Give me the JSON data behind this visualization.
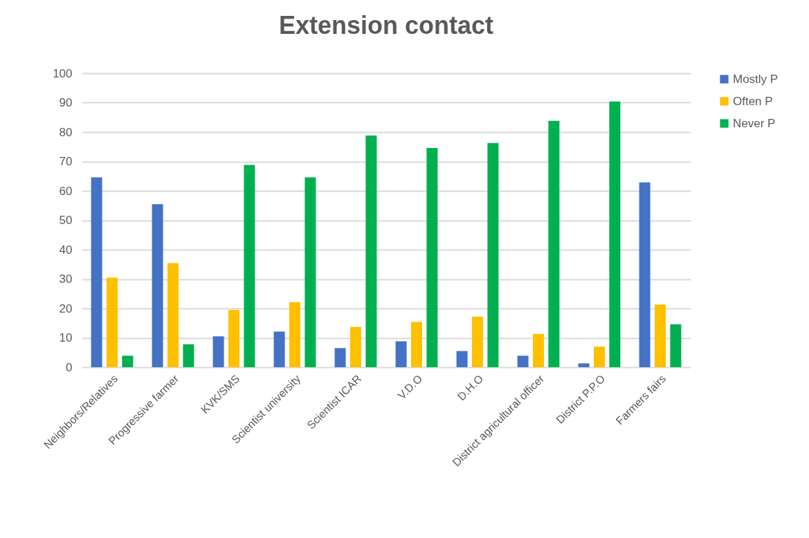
{
  "chart_data": {
    "type": "bar",
    "title": "Extension contact",
    "categories": [
      "Neighbors/Relatives",
      "Progressive farmer",
      "KVK/SMS",
      "Scientist university",
      "Scientist ICAR",
      "V.D.O",
      "D.H.O",
      "District agricultural officer",
      "District P.P.O",
      "Farmers fairs"
    ],
    "series": [
      {
        "name": "Mostly P",
        "color": "#4472c4",
        "values": [
          64.6,
          55.5,
          10.5,
          12.1,
          6.5,
          8.8,
          5.5,
          3.9,
          1.3,
          62.9
        ]
      },
      {
        "name": "Often P",
        "color": "#ffc000",
        "values": [
          30.5,
          35.4,
          19.5,
          22.1,
          13.7,
          15.4,
          17.2,
          11.3,
          7.0,
          21.3
        ]
      },
      {
        "name": "Never P",
        "color": "#00b050",
        "values": [
          3.9,
          7.8,
          68.8,
          64.6,
          78.8,
          74.6,
          76.3,
          83.8,
          90.4,
          14.6
        ]
      }
    ],
    "ylim": [
      0,
      100
    ],
    "yticks": [
      0,
      10,
      20,
      30,
      40,
      50,
      60,
      70,
      80,
      90,
      100
    ],
    "grid": "y",
    "legend": "right"
  }
}
